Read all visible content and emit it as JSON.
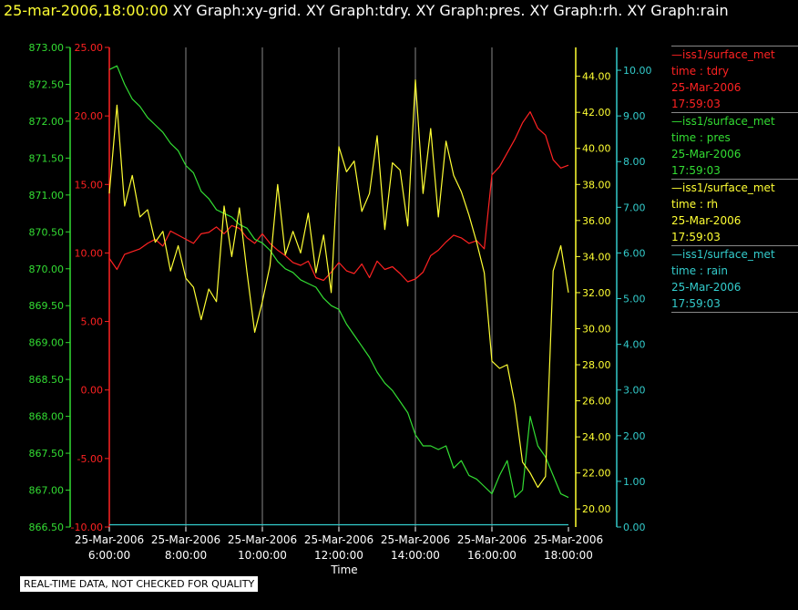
{
  "header": {
    "datetime": "25-mar-2006,18:00:00",
    "titles": "XY Graph:xy-grid.  XY Graph:tdry.  XY Graph:pres.  XY Graph:rh.  XY Graph:rain"
  },
  "legend": [
    {
      "name": "iss1/surface_met",
      "line2": "time : tdry",
      "line3": "25-Mar-2006",
      "line4": "17:59:03",
      "color": "#ff2222"
    },
    {
      "name": "iss1/surface_met",
      "line2": "time : pres",
      "line3": "25-Mar-2006",
      "line4": "17:59:03",
      "color": "#33dd33"
    },
    {
      "name": "iss1/surface_met",
      "line2": "time : rh",
      "line3": "25-Mar-2006",
      "line4": "17:59:03",
      "color": "#ffff33"
    },
    {
      "name": "iss1/surface_met",
      "line2": "time : rain",
      "line3": "25-Mar-2006",
      "line4": "17:59:03",
      "color": "#33cccc"
    }
  ],
  "disclaimer": "REAL-TIME DATA, NOT CHECKED FOR QUALITY",
  "colors": {
    "tdry": "#ff2222",
    "pres": "#33dd33",
    "rh": "#ffff33",
    "rain": "#33cccc",
    "grid": "#888888"
  },
  "chart_data": {
    "type": "line",
    "xlabel": "Time",
    "x_ticks": [
      {
        "l1": "25-Mar-2006",
        "l2": "6:00:00",
        "h": 6
      },
      {
        "l1": "25-Mar-2006",
        "l2": "8:00:00",
        "h": 8
      },
      {
        "l1": "25-Mar-2006",
        "l2": "10:00:00",
        "h": 10
      },
      {
        "l1": "25-Mar-2006",
        "l2": "12:00:00",
        "h": 12
      },
      {
        "l1": "25-Mar-2006",
        "l2": "14:00:00",
        "h": 14
      },
      {
        "l1": "25-Mar-2006",
        "l2": "16:00:00",
        "h": 16
      },
      {
        "l1": "25-Mar-2006",
        "l2": "18:00:00",
        "h": 18
      }
    ],
    "xlim": [
      6,
      18
    ],
    "axes": {
      "pres": {
        "lim": [
          866.5,
          873.0
        ],
        "ticks": [
          "873.00",
          "872.50",
          "872.00",
          "871.50",
          "871.00",
          "870.50",
          "870.00",
          "869.50",
          "869.00",
          "868.50",
          "868.00",
          "867.50",
          "867.00",
          "866.50"
        ]
      },
      "tdry": {
        "lim": [
          -10,
          25
        ],
        "ticks": [
          "25.00",
          "20.00",
          "15.00",
          "10.00",
          "5.00",
          "0.00",
          "-5.00",
          "-10.00"
        ]
      },
      "rh": {
        "lim": [
          19,
          45.6
        ],
        "ticks": [
          "44.00",
          "42.00",
          "40.00",
          "38.00",
          "36.00",
          "34.00",
          "32.00",
          "30.00",
          "28.00",
          "26.00",
          "24.00",
          "22.00",
          "20.00"
        ]
      },
      "rain": {
        "lim": [
          0,
          10.5
        ],
        "ticks": [
          "10.00",
          "9.00",
          "8.00",
          "7.00",
          "6.00",
          "5.00",
          "4.00",
          "3.00",
          "2.00",
          "1.00",
          "0.00"
        ]
      }
    },
    "series": [
      {
        "name": "tdry",
        "x": [
          6.0,
          6.2,
          6.4,
          6.6,
          6.8,
          7.0,
          7.2,
          7.4,
          7.6,
          7.8,
          8.0,
          8.2,
          8.4,
          8.6,
          8.8,
          9.0,
          9.2,
          9.4,
          9.6,
          9.8,
          10.0,
          10.2,
          10.4,
          10.6,
          10.8,
          11.0,
          11.2,
          11.4,
          11.6,
          11.8,
          12.0,
          12.2,
          12.4,
          12.6,
          12.8,
          13.0,
          13.2,
          13.4,
          13.6,
          13.8,
          14.0,
          14.2,
          14.4,
          14.6,
          14.8,
          15.0,
          15.2,
          15.4,
          15.6,
          15.8,
          16.0,
          16.2,
          16.4,
          16.6,
          16.8,
          17.0,
          17.2,
          17.4,
          17.6,
          17.8,
          18.0
        ],
        "values": [
          9.6,
          8.8,
          9.9,
          10.1,
          10.3,
          10.7,
          11.0,
          10.5,
          11.6,
          11.3,
          11.0,
          10.7,
          11.4,
          11.5,
          11.9,
          11.4,
          12.0,
          11.8,
          11.1,
          10.7,
          11.4,
          10.7,
          10.2,
          9.8,
          9.3,
          9.1,
          9.4,
          8.2,
          8.0,
          8.6,
          9.3,
          8.7,
          8.5,
          9.2,
          8.2,
          9.4,
          8.8,
          9.0,
          8.5,
          7.9,
          8.1,
          8.6,
          9.8,
          10.2,
          10.8,
          11.3,
          11.1,
          10.7,
          10.9,
          10.3,
          15.7,
          16.3,
          17.3,
          18.3,
          19.5,
          20.3,
          19.1,
          18.6,
          16.8,
          16.2,
          16.4
        ]
      },
      {
        "name": "pres",
        "x": [
          6.0,
          6.2,
          6.4,
          6.6,
          6.8,
          7.0,
          7.2,
          7.4,
          7.6,
          7.8,
          8.0,
          8.2,
          8.4,
          8.6,
          8.8,
          9.0,
          9.2,
          9.4,
          9.6,
          9.8,
          10.0,
          10.2,
          10.4,
          10.6,
          10.8,
          11.0,
          11.2,
          11.4,
          11.6,
          11.8,
          12.0,
          12.2,
          12.4,
          12.6,
          12.8,
          13.0,
          13.2,
          13.4,
          13.6,
          13.8,
          14.0,
          14.2,
          14.4,
          14.6,
          14.8,
          15.0,
          15.2,
          15.4,
          15.6,
          15.8,
          16.0,
          16.2,
          16.4,
          16.6,
          16.8,
          17.0,
          17.2,
          17.4,
          17.6,
          17.8,
          18.0
        ],
        "values": [
          872.7,
          872.75,
          872.5,
          872.3,
          872.2,
          872.05,
          871.95,
          871.85,
          871.7,
          871.6,
          871.4,
          871.3,
          871.05,
          870.95,
          870.8,
          870.75,
          870.7,
          870.6,
          870.55,
          870.4,
          870.35,
          870.25,
          870.1,
          870.0,
          869.95,
          869.85,
          869.8,
          869.75,
          869.6,
          869.5,
          869.45,
          869.25,
          869.1,
          868.95,
          868.8,
          868.6,
          868.45,
          868.35,
          868.2,
          868.05,
          867.75,
          867.6,
          867.6,
          867.55,
          867.6,
          867.3,
          867.4,
          867.2,
          867.15,
          867.05,
          866.95,
          867.2,
          867.4,
          866.9,
          867.0,
          868.0,
          867.6,
          867.45,
          867.2,
          866.95,
          866.9
        ]
      },
      {
        "name": "rh",
        "x": [
          6.0,
          6.2,
          6.4,
          6.6,
          6.8,
          7.0,
          7.2,
          7.4,
          7.6,
          7.8,
          8.0,
          8.2,
          8.4,
          8.6,
          8.8,
          9.0,
          9.2,
          9.4,
          9.6,
          9.8,
          10.0,
          10.2,
          10.4,
          10.6,
          10.8,
          11.0,
          11.2,
          11.4,
          11.6,
          11.8,
          12.0,
          12.2,
          12.4,
          12.6,
          12.8,
          13.0,
          13.2,
          13.4,
          13.6,
          13.8,
          14.0,
          14.2,
          14.4,
          14.6,
          14.8,
          15.0,
          15.2,
          15.4,
          15.6,
          15.8,
          16.0,
          16.2,
          16.4,
          16.6,
          16.8,
          17.0,
          17.2,
          17.4,
          17.6,
          17.8,
          18.0
        ],
        "values": [
          37.5,
          42.4,
          36.8,
          38.5,
          36.2,
          36.6,
          34.8,
          35.4,
          33.2,
          34.6,
          32.8,
          32.3,
          30.5,
          32.2,
          31.5,
          36.8,
          34.0,
          36.7,
          33.1,
          29.8,
          31.5,
          33.5,
          38.0,
          34.1,
          35.4,
          34.2,
          36.4,
          33.1,
          35.2,
          32.0,
          40.1,
          38.7,
          39.3,
          36.5,
          37.5,
          40.7,
          35.5,
          39.2,
          38.8,
          35.7,
          43.8,
          37.5,
          41.1,
          36.2,
          40.4,
          38.5,
          37.6,
          36.3,
          34.8,
          33.1,
          28.2,
          27.8,
          28.0,
          25.8,
          22.6,
          22.0,
          21.2,
          21.8,
          33.2,
          34.6,
          32.0
        ]
      },
      {
        "name": "rain",
        "x": [
          6.0,
          18.0
        ],
        "values": [
          0.05,
          0.05
        ]
      }
    ]
  }
}
